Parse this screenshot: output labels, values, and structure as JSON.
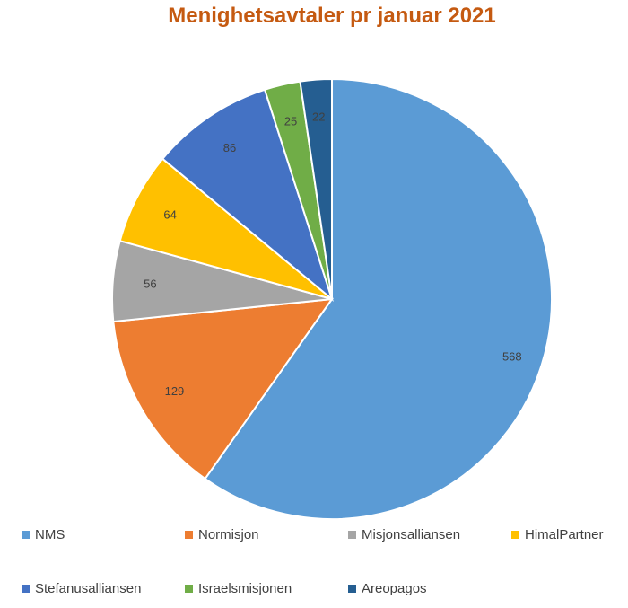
{
  "chart_data": {
    "type": "pie",
    "title": "Menighetsavtaler pr januar 2021",
    "categories": [
      "NMS",
      "Normisjon",
      "Misjonsalliansen",
      "HimalPartner",
      "Stefanusalliansen",
      "Israelsmisjonen",
      "Areopagos"
    ],
    "values": [
      568,
      129,
      56,
      64,
      86,
      25,
      22
    ],
    "colors": [
      "#5b9bd5",
      "#ed7d31",
      "#a5a5a5",
      "#ffc000",
      "#4472c4",
      "#70ad47",
      "#255e91"
    ],
    "data_labels": [
      "568",
      "129",
      "56",
      "64",
      "86",
      "25",
      "22"
    ],
    "legend_position": "bottom",
    "start_angle": "12 o'clock",
    "direction": "clockwise"
  }
}
